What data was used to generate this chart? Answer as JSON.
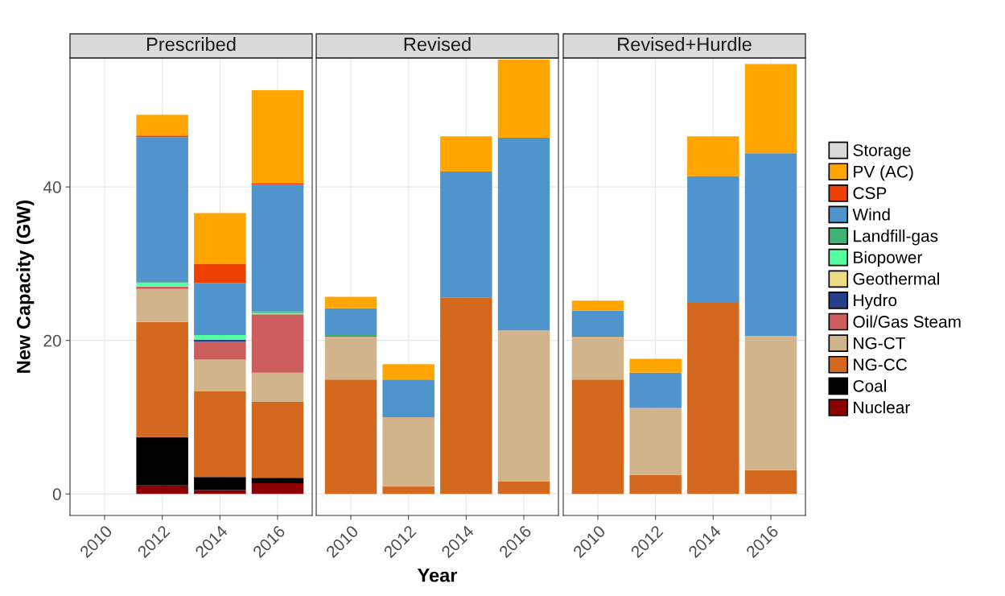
{
  "chart_data": [
    {
      "type": "bar",
      "stacked": true,
      "title": "Prescribed",
      "ylabel": "New Capacity (GW)",
      "categories": [
        "2010",
        "2012",
        "2014",
        "2016"
      ],
      "ylim": [
        -2.8,
        56.8
      ],
      "yticks": [
        0,
        20,
        40
      ],
      "grid": true,
      "legend": "right",
      "series": [
        {
          "name": "Nuclear",
          "color": "#8b0000",
          "values": [
            0,
            1.1,
            0.5,
            1.4
          ]
        },
        {
          "name": "Coal",
          "color": "#000000",
          "values": [
            0,
            6.3,
            1.7,
            0.7
          ]
        },
        {
          "name": "NG-CC",
          "color": "#d2691e",
          "values": [
            0,
            15.0,
            11.2,
            9.9
          ]
        },
        {
          "name": "NG-CT",
          "color": "#d2b48c",
          "values": [
            0,
            4.3,
            4.1,
            3.8
          ]
        },
        {
          "name": "Oil/Gas Steam",
          "color": "#cd5c5c",
          "values": [
            0,
            0.3,
            2.3,
            7.6
          ]
        },
        {
          "name": "Hydro",
          "color": "#27408b",
          "values": [
            0,
            0,
            0.3,
            0
          ]
        },
        {
          "name": "Geothermal",
          "color": "#eedc82",
          "values": [
            0,
            0.1,
            0,
            0
          ]
        },
        {
          "name": "Biopower",
          "color": "#54ff9f",
          "values": [
            0,
            0.4,
            0.6,
            0.2
          ]
        },
        {
          "name": "Landfill-gas",
          "color": "#3cb371",
          "values": [
            0,
            0.1,
            0,
            0.2
          ]
        },
        {
          "name": "Wind",
          "color": "#4f94cd",
          "values": [
            0,
            18.9,
            6.8,
            16.5
          ]
        },
        {
          "name": "CSP",
          "color": "#ee4000",
          "values": [
            0,
            0.2,
            2.5,
            0.2
          ]
        },
        {
          "name": "PV (AC)",
          "color": "#ffa500",
          "values": [
            0,
            2.7,
            6.6,
            12.1
          ]
        },
        {
          "name": "Storage",
          "color": "#d9d9d9",
          "values": [
            0,
            0,
            0,
            0
          ]
        }
      ]
    },
    {
      "type": "bar",
      "stacked": true,
      "title": "Revised",
      "xlabel": "Year",
      "categories": [
        "2010",
        "2012",
        "2014",
        "2016"
      ],
      "ylim": [
        -2.8,
        56.8
      ],
      "yticks": [
        0,
        20,
        40
      ],
      "tick_labels": "x",
      "grid": true,
      "series": [
        {
          "color": "#8b0000",
          "values": [
            0,
            0,
            0,
            0
          ]
        },
        {
          "color": "#000000",
          "values": [
            0,
            0,
            0,
            0
          ]
        },
        {
          "color": "#d2691e",
          "values": [
            14.9,
            1.0,
            25.6,
            1.6
          ]
        },
        {
          "color": "#d2b48c",
          "values": [
            5.6,
            9.0,
            0,
            19.7
          ]
        },
        {
          "color": "#cd5c5c",
          "values": [
            0.1,
            0,
            0,
            0
          ]
        },
        {
          "color": "#27408b",
          "values": [
            0,
            0,
            0,
            0
          ]
        },
        {
          "color": "#eedc82",
          "values": [
            0,
            0,
            0,
            0
          ]
        },
        {
          "color": "#54ff9f",
          "values": [
            0,
            0,
            0,
            0
          ]
        },
        {
          "color": "#3cb371",
          "values": [
            0.1,
            0,
            0,
            0
          ]
        },
        {
          "color": "#4f94cd",
          "values": [
            3.5,
            4.9,
            16.4,
            25.1
          ]
        },
        {
          "color": "#ee4000",
          "values": [
            0,
            0,
            0,
            0
          ]
        },
        {
          "color": "#ffa500",
          "values": [
            1.5,
            2.0,
            4.6,
            10.2
          ]
        },
        {
          "color": "#d9d9d9",
          "values": [
            0,
            0,
            0,
            0
          ]
        }
      ]
    },
    {
      "type": "bar",
      "stacked": true,
      "title": "Revised+Hurdle",
      "categories": [
        "2010",
        "2012",
        "2014",
        "2016"
      ],
      "ylim": [
        -2.8,
        56.8
      ],
      "yticks": [
        0,
        20,
        40
      ],
      "tick_labels": "x",
      "grid": true,
      "series": [
        {
          "color": "#8b0000",
          "values": [
            0,
            0,
            0,
            0
          ]
        },
        {
          "color": "#000000",
          "values": [
            0,
            0,
            0,
            0
          ]
        },
        {
          "color": "#d2691e",
          "values": [
            14.9,
            2.5,
            24.9,
            3.1
          ]
        },
        {
          "color": "#d2b48c",
          "values": [
            5.6,
            8.7,
            0,
            17.5
          ]
        },
        {
          "color": "#cd5c5c",
          "values": [
            0.1,
            0,
            0,
            0
          ]
        },
        {
          "color": "#27408b",
          "values": [
            0,
            0,
            0,
            0
          ]
        },
        {
          "color": "#eedc82",
          "values": [
            0,
            0,
            0,
            0
          ]
        },
        {
          "color": "#54ff9f",
          "values": [
            0,
            0,
            0,
            0
          ]
        },
        {
          "color": "#3cb371",
          "values": [
            0,
            0,
            0,
            0
          ]
        },
        {
          "color": "#4f94cd",
          "values": [
            3.3,
            4.6,
            16.5,
            23.8
          ]
        },
        {
          "color": "#ee4000",
          "values": [
            0,
            0,
            0,
            0
          ]
        },
        {
          "color": "#ffa500",
          "values": [
            1.3,
            1.8,
            5.2,
            11.6
          ]
        },
        {
          "color": "#d9d9d9",
          "values": [
            0,
            0,
            0,
            0
          ]
        }
      ]
    }
  ]
}
